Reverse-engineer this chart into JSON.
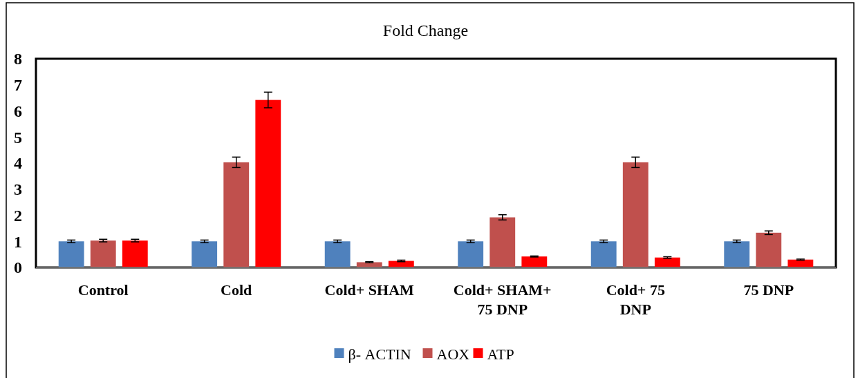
{
  "chart_data": {
    "type": "bar",
    "title": "Fold Change",
    "categories": [
      "Control",
      "Cold",
      "Cold+ SHAM",
      "Cold+ SHAM+ 75 DNP",
      "Cold+ 75 DNP",
      "75 DNP"
    ],
    "series": [
      {
        "name": "β- ACTIN",
        "color": "#4f81bd",
        "values": [
          1,
          1,
          1,
          1,
          1,
          1
        ],
        "errors": [
          0.05,
          0.05,
          0.05,
          0.05,
          0.05,
          0.05
        ]
      },
      {
        "name": "AOX",
        "color": "#c0504d",
        "values": [
          1.03,
          4.03,
          0.2,
          1.92,
          4.03,
          1.33
        ],
        "errors": [
          0.05,
          0.2,
          0.02,
          0.1,
          0.2,
          0.07
        ]
      },
      {
        "name": "ATP",
        "color": "#ff0000",
        "values": [
          1.03,
          6.42,
          0.25,
          0.42,
          0.38,
          0.3
        ],
        "errors": [
          0.05,
          0.3,
          0.03,
          0.02,
          0.03,
          0.02
        ]
      }
    ],
    "ylim": [
      0,
      8
    ],
    "yticks": [
      0,
      1,
      2,
      3,
      4,
      5,
      6,
      7,
      8
    ],
    "grid": false,
    "legend": "bottom"
  }
}
